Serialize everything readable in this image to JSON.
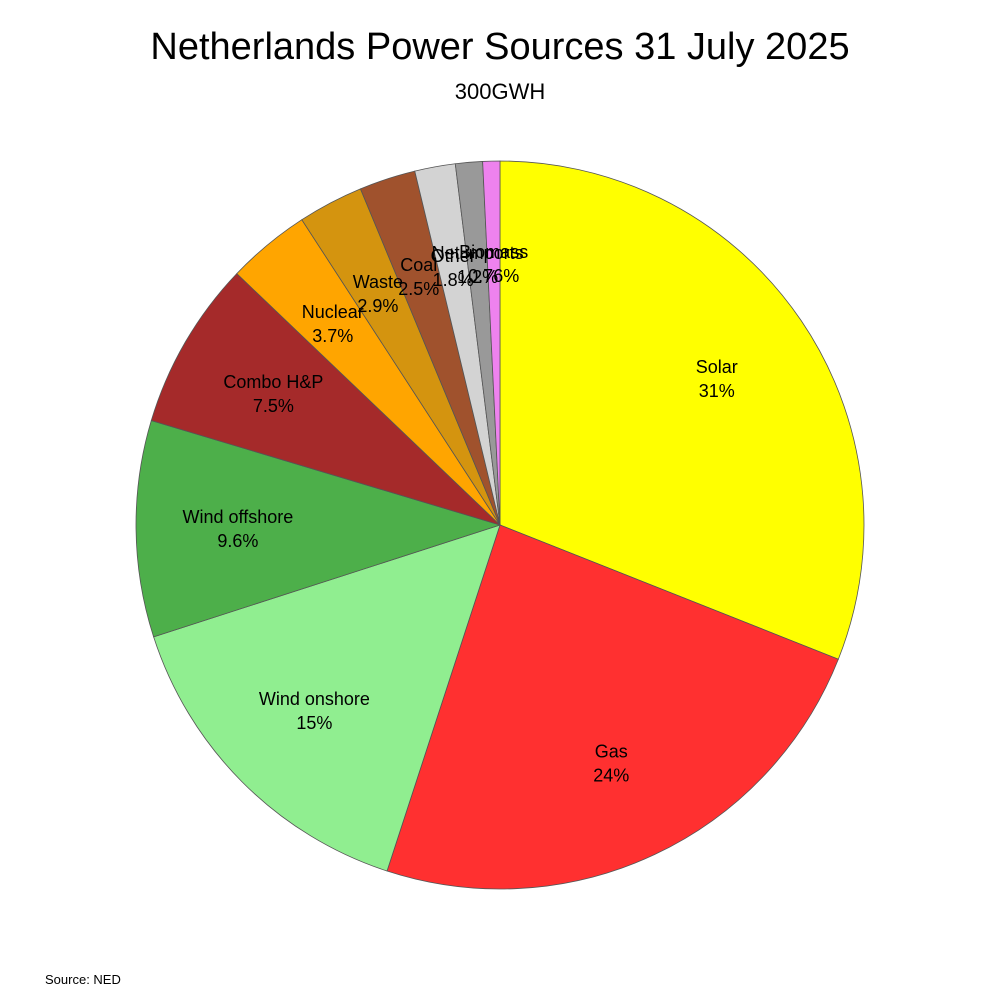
{
  "chart_data": {
    "type": "pie",
    "title": "Netherlands Power Sources 31 July 2025",
    "subtitle": "300GWH",
    "source": "Source: NED",
    "slices": [
      {
        "label": "Solar",
        "value": 31,
        "display": "31%",
        "color": "#ffff00"
      },
      {
        "label": "Gas",
        "value": 24,
        "display": "24%",
        "color": "#ff3030"
      },
      {
        "label": "Wind onshore",
        "value": 15,
        "display": "15%",
        "color": "#90ee90"
      },
      {
        "label": "Wind offshore",
        "value": 9.6,
        "display": "9.6%",
        "color": "#4daf4a"
      },
      {
        "label": "Combo H&P",
        "value": 7.5,
        "display": "7.5%",
        "color": "#a52a2a"
      },
      {
        "label": "Nuclear",
        "value": 3.7,
        "display": "3.7%",
        "color": "#ffa500"
      },
      {
        "label": "Waste",
        "value": 2.9,
        "display": "2.9%",
        "color": "#d4940f"
      },
      {
        "label": "Coal",
        "value": 2.5,
        "display": "2.5%",
        "color": "#a0522d"
      },
      {
        "label": "Other",
        "value": 1.8,
        "display": "1.8%",
        "color": "#d3d3d3"
      },
      {
        "label": "Net imports",
        "value": 1.2,
        "display": "1.2%",
        "color": "#999999"
      },
      {
        "label": "Biomass",
        "value": 0.76,
        "display": "0.76%",
        "color": "#ee82ee"
      }
    ],
    "start_angle": "12 o'clock",
    "direction": "clockwise",
    "legend": "none"
  }
}
